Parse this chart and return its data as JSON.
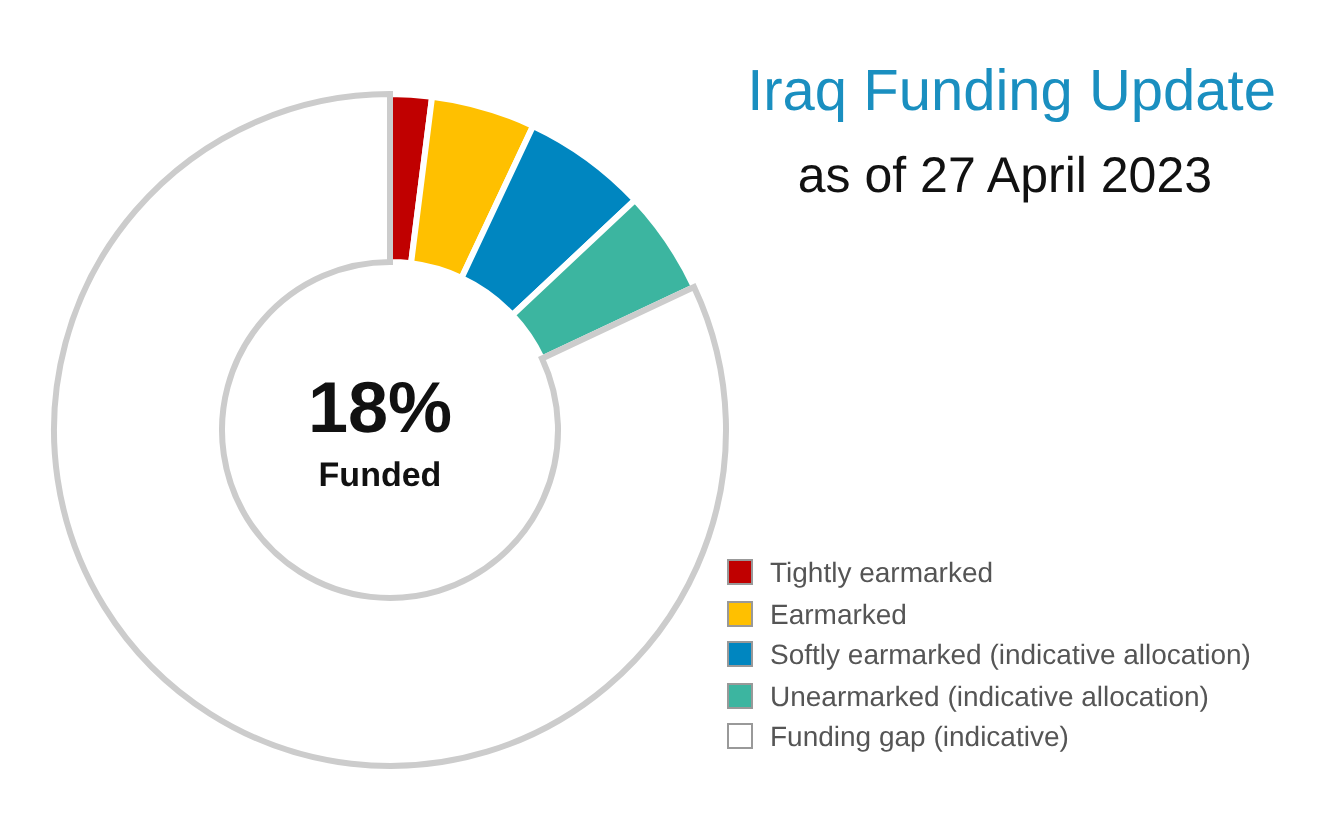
{
  "chart_data": {
    "type": "donut",
    "title": "Iraq Funding Update",
    "subtitle": "as of 27 April 2023",
    "categories": [
      "Tightly earmarked",
      "Earmarked",
      "Softly earmarked (indicative allocation)",
      "Unearmarked (indicative allocation)",
      "Funding gap (indicative)"
    ],
    "values": [
      2,
      5,
      6,
      5,
      82
    ],
    "colors": [
      "#c00000",
      "#ffc000",
      "#0086c0",
      "#3cb5a0",
      "#ffffff"
    ],
    "annotations": [
      "18%",
      "Funded"
    ],
    "legend": "bottom right"
  }
}
